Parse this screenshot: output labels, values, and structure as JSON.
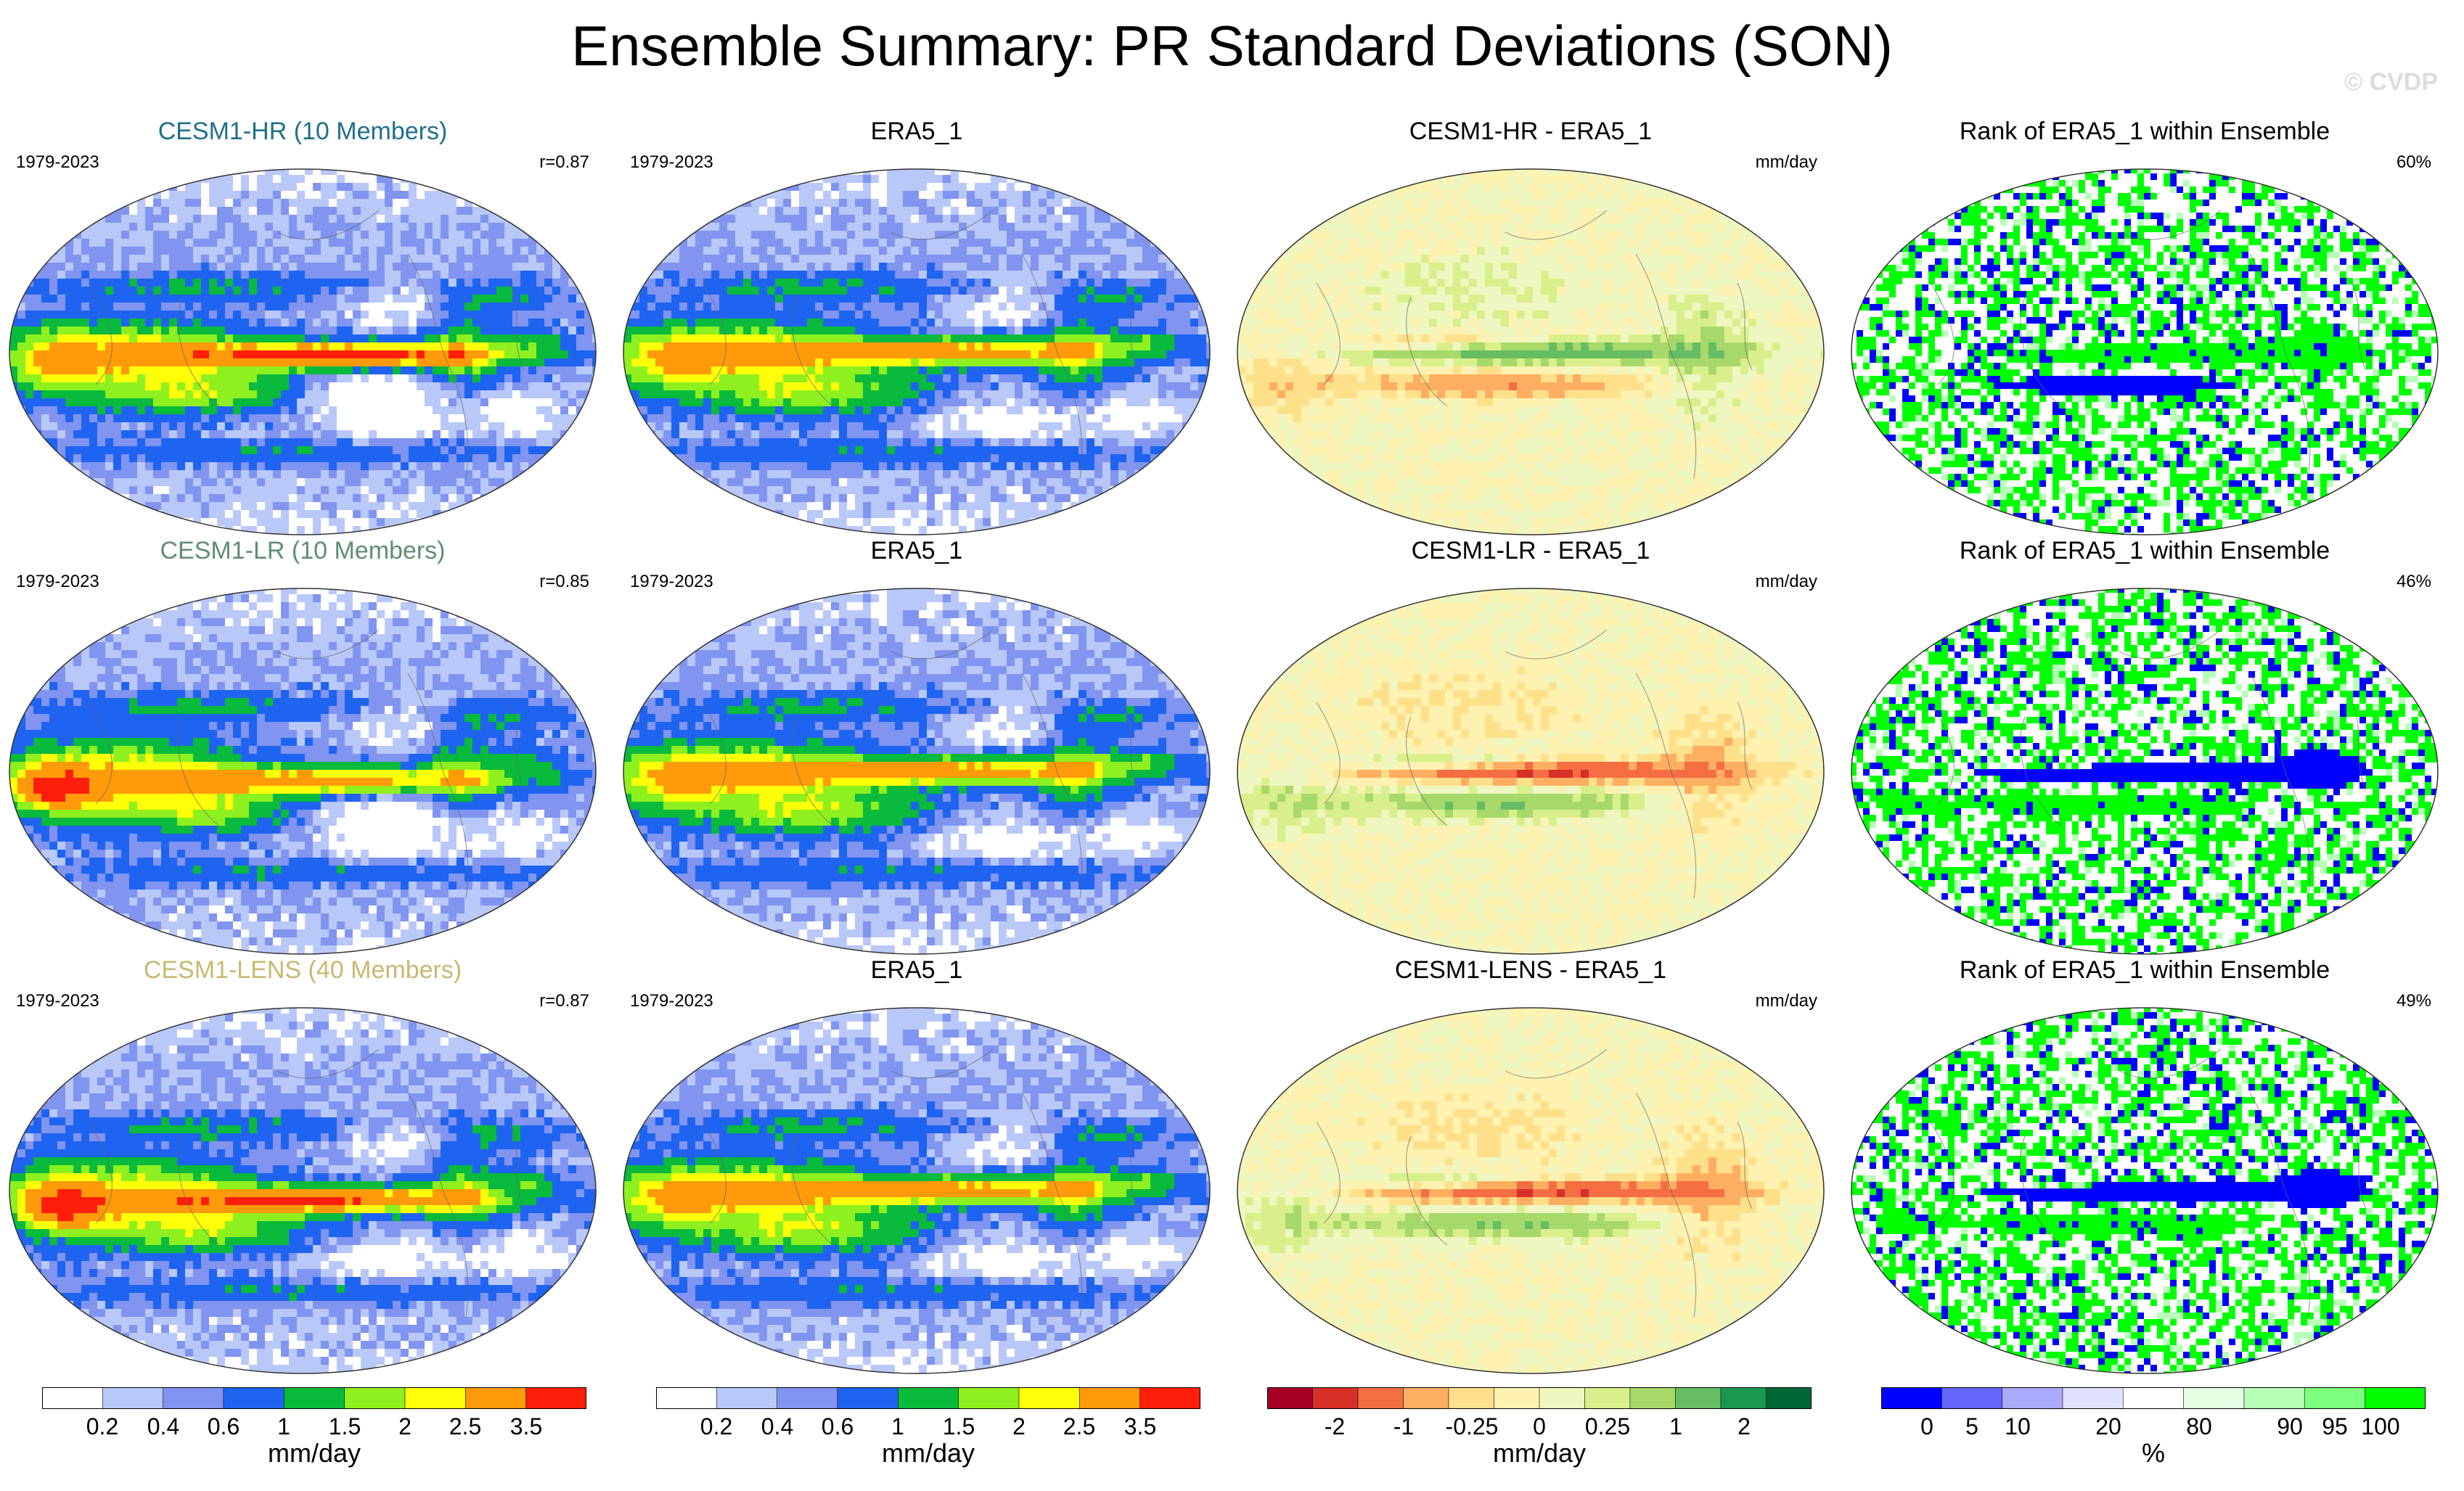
{
  "title": "Ensemble Summary: PR Standard Deviations (SON)",
  "watermark": "© CVDP",
  "colors": {
    "seq": [
      "#ffffff",
      "#b8c8f8",
      "#8094f0",
      "#1e64f0",
      "#0aba3c",
      "#8ef01e",
      "#ffff0a",
      "#ff9a0a",
      "#ff1e0a"
    ],
    "div": [
      "#a50026",
      "#d73027",
      "#f46d43",
      "#fdae61",
      "#fee08b",
      "#fff2b0",
      "#eff7c0",
      "#d9ef8b",
      "#a6d96a",
      "#66bd63",
      "#1a9850",
      "#006837"
    ],
    "rank": [
      "#0000ff",
      "#6666ff",
      "#aaaaff",
      "#e0e0ff",
      "#ffffff",
      "#e4ffe4",
      "#b8ffb8",
      "#7cff7c",
      "#00ff00"
    ],
    "title_hr": "#1f6f8b",
    "title_lr": "#5f8f6f",
    "title_lens": "#c8b870"
  },
  "rows": [
    {
      "ensemble": {
        "title": "CESM1-HR (10 Members)",
        "years": "1979-2023",
        "corr": "r=0.87"
      },
      "obs": {
        "title": "ERA5_1",
        "years": "1979-2023"
      },
      "diff": {
        "title": "CESM1-HR - ERA5_1",
        "units": "mm/day"
      },
      "rank": {
        "title": "Rank of ERA5_1 within Ensemble",
        "pct": "60%"
      }
    },
    {
      "ensemble": {
        "title": "CESM1-LR (10 Members)",
        "years": "1979-2023",
        "corr": "r=0.85"
      },
      "obs": {
        "title": "ERA5_1",
        "years": "1979-2023"
      },
      "diff": {
        "title": "CESM1-LR - ERA5_1",
        "units": "mm/day"
      },
      "rank": {
        "title": "Rank of ERA5_1 within Ensemble",
        "pct": "46%"
      }
    },
    {
      "ensemble": {
        "title": "CESM1-LENS (40 Members)",
        "years": "1979-2023",
        "corr": "r=0.87"
      },
      "obs": {
        "title": "ERA5_1",
        "years": "1979-2023"
      },
      "diff": {
        "title": "CESM1-LENS - ERA5_1",
        "units": "mm/day"
      },
      "rank": {
        "title": "Rank of ERA5_1 within Ensemble",
        "pct": "49%"
      }
    }
  ],
  "colorbars": [
    {
      "labels": [
        "0.2",
        "0.4",
        "0.6",
        "1",
        "1.5",
        "2",
        "2.5",
        "3.5"
      ],
      "units": "mm/day"
    },
    {
      "labels": [
        "0.2",
        "0.4",
        "0.6",
        "1",
        "1.5",
        "2",
        "2.5",
        "3.5"
      ],
      "units": "mm/day"
    },
    {
      "labels": [
        "-2",
        "-1",
        "-0.25",
        "0",
        "0.25",
        "1",
        "2"
      ],
      "units": "mm/day"
    },
    {
      "labels": [
        "0",
        "5",
        "10",
        "20",
        "80",
        "90",
        "95",
        "100"
      ],
      "units": "%"
    }
  ],
  "chart_data": {
    "type": "heatmap",
    "title": "Ensemble Summary: PR Standard Deviations (SON)",
    "season": "SON",
    "variable": "PR Standard Deviations",
    "period": "1979-2023",
    "panels": [
      {
        "title": "CESM1-HR (10 Members)",
        "kind": "ensemble_mean_std",
        "pattern_correlation": 0.87,
        "units": "mm/day"
      },
      {
        "title": "ERA5_1",
        "kind": "observed_std",
        "units": "mm/day"
      },
      {
        "title": "CESM1-HR - ERA5_1",
        "kind": "difference",
        "units": "mm/day"
      },
      {
        "title": "Rank of ERA5_1 within Ensemble",
        "kind": "rank",
        "units": "%",
        "area_percent": 60
      },
      {
        "title": "CESM1-LR (10 Members)",
        "kind": "ensemble_mean_std",
        "pattern_correlation": 0.85,
        "units": "mm/day"
      },
      {
        "title": "ERA5_1",
        "kind": "observed_std",
        "units": "mm/day"
      },
      {
        "title": "CESM1-LR - ERA5_1",
        "kind": "difference",
        "units": "mm/day"
      },
      {
        "title": "Rank of ERA5_1 within Ensemble",
        "kind": "rank",
        "units": "%",
        "area_percent": 46
      },
      {
        "title": "CESM1-LENS (40 Members)",
        "kind": "ensemble_mean_std",
        "pattern_correlation": 0.87,
        "units": "mm/day"
      },
      {
        "title": "ERA5_1",
        "kind": "observed_std",
        "units": "mm/day"
      },
      {
        "title": "CESM1-LENS - ERA5_1",
        "kind": "difference",
        "units": "mm/day"
      },
      {
        "title": "Rank of ERA5_1 within Ensemble",
        "kind": "rank",
        "units": "%",
        "area_percent": 49
      }
    ],
    "colorbar_levels": {
      "std": [
        0.2,
        0.4,
        0.6,
        1,
        1.5,
        2,
        2.5,
        3.5
      ],
      "difference": [
        -2,
        -1,
        -0.25,
        0,
        0.25,
        1,
        2
      ],
      "rank": [
        0,
        5,
        10,
        20,
        80,
        90,
        95,
        100
      ]
    }
  }
}
